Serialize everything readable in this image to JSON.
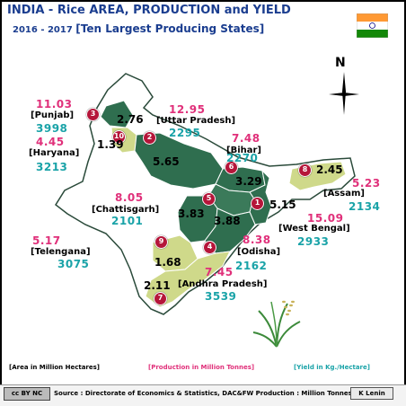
{
  "title": {
    "line1": "INDIA - Rice AREA, PRODUCTION and  YIELD",
    "years": "2016 - 2017",
    "subtitle": "[Ten Largest Producing States]"
  },
  "compass": {
    "label": "N"
  },
  "states": [
    {
      "rank": "1",
      "name": "West Bengal",
      "production": "15.09",
      "yield": "2933",
      "area": "5.15"
    },
    {
      "rank": "2",
      "name": "Uttar  Pradesh",
      "production": "12.95",
      "yield": "2295",
      "area": "5.65"
    },
    {
      "rank": "3",
      "name": "[Punjab]",
      "production": "11.03",
      "yield": "3998",
      "area": "2.76"
    },
    {
      "rank": "4",
      "name": "[Odisha]",
      "production": "8.38",
      "yield": "2162",
      "area": "3.88"
    },
    {
      "rank": "5",
      "name": "[Chattisgarh]",
      "production": "8.05",
      "yield": "2101",
      "area": "3.83"
    },
    {
      "rank": "6",
      "name": "[Bihar]",
      "production": "7.48",
      "yield": "2270",
      "area": "3.29"
    },
    {
      "rank": "7",
      "name": "[Andhra Pradesh]",
      "production": "7.45",
      "yield": "3539",
      "area": "2.11"
    },
    {
      "rank": "8",
      "name": "[Assam]",
      "production": "5.23",
      "yield": "2134",
      "area": "2.45"
    },
    {
      "rank": "9",
      "name": "[Telengana]",
      "production": "5.17",
      "yield": "3075",
      "area": "1.68"
    },
    {
      "rank": "10",
      "name": "[Haryana]",
      "production": "4.45",
      "yield": "3213",
      "area": "1.39"
    }
  ],
  "legend": {
    "area": "[Area in Million Hectares]",
    "production": "[Production in Million Tonnes]",
    "yield": "[Yield in Kg./Hectare]"
  },
  "footer": {
    "license": "cc  BY  NC",
    "source": "Source : Directorate of Economics & Statistics, DAC&FW  Production : Million Tonnes",
    "credit": "K Lenin"
  },
  "colors": {
    "dark_green": "#2f6e4f",
    "light_green": "#cfd98a",
    "outline": "#ffffff",
    "non_ranked": "#ffffff",
    "production_text": "#e0307a",
    "yield_text": "#1aa3a8",
    "title_text": "#1a3d8f",
    "marker": "#b5163a"
  }
}
